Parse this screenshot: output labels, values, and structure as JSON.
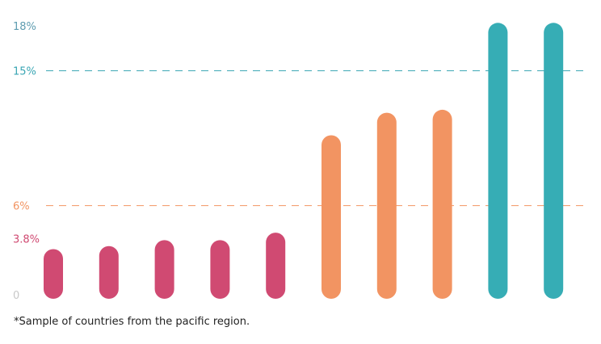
{
  "chart_data": {
    "type": "bar",
    "categories": [
      "",
      "",
      "",
      "",
      "",
      "",
      "",
      "",
      "",
      ""
    ],
    "values": [
      3.1,
      3.3,
      3.7,
      3.7,
      4.2,
      10.7,
      12.2,
      12.4,
      18.2,
      18.2
    ],
    "bar_colors": [
      "#d04a72",
      "#d04a72",
      "#d04a72",
      "#d04a72",
      "#d04a72",
      "#f29462",
      "#f29462",
      "#f29462",
      "#36adb5",
      "#36adb5"
    ],
    "ylim": [
      0,
      18
    ],
    "yticks": [
      {
        "value": 0,
        "label": "0",
        "color": "#c8c8c8"
      },
      {
        "value": 3.8,
        "label": "3.8%",
        "color": "#d04a72"
      },
      {
        "value": 6,
        "label": "6%",
        "color": "#f29462"
      },
      {
        "value": 15,
        "label": "15%",
        "color": "#3aa6b4"
      },
      {
        "value": 18,
        "label": "18%",
        "color": "#5e9cb0"
      }
    ],
    "reference_lines": [
      {
        "value": 6,
        "color": "#f29462",
        "style": "dashed"
      },
      {
        "value": 15,
        "color": "#3aa6b4",
        "style": "dashed"
      }
    ],
    "grid": false,
    "legend": "none",
    "title": "",
    "xlabel": "",
    "ylabel": ""
  },
  "footnote": "*Sample of countries from the pacific region."
}
